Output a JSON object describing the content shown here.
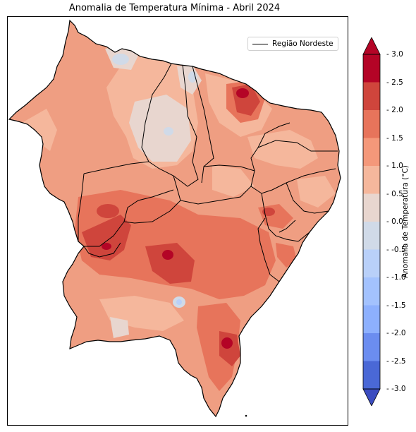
{
  "title": "Anomalia de Temperatura Mínima - Abril 2024",
  "legend": {
    "entry": "Região Nordeste"
  },
  "colorbar": {
    "label": "Anomalia de Temperatura (°C)",
    "ticks": [
      "3.0",
      "2.5",
      "2.0",
      "1.5",
      "1.0",
      "0.5",
      "0.0",
      "-0.5",
      "-1.0",
      "-1.5",
      "-2.0",
      "-2.5",
      "-3.0"
    ],
    "levels": [
      {
        "range": "2.5 to 3.0",
        "color": "#b40426"
      },
      {
        "range": "2.0 to 2.5",
        "color": "#cf453c"
      },
      {
        "range": "1.5 to 2.0",
        "color": "#e7745b"
      },
      {
        "range": "1.0 to 1.5",
        "color": "#f4987a"
      },
      {
        "range": "0.5 to 1.0",
        "color": "#f5b79c"
      },
      {
        "range": "0.0 to 0.5",
        "color": "#e8d6cf"
      },
      {
        "range": "-0.5 to 0.0",
        "color": "#d0dae8"
      },
      {
        "range": "-1.0 to -0.5",
        "color": "#b9d0f9"
      },
      {
        "range": "-1.5 to -1.0",
        "color": "#a3c2fe"
      },
      {
        "range": "-2.0 to -1.5",
        "color": "#8db0fe"
      },
      {
        "range": "-2.5 to -2.0",
        "color": "#6b8df0"
      },
      {
        "range": "-3.0 to -2.5",
        "color": "#4a68d6"
      }
    ],
    "extend_max_color": "#b40426",
    "extend_min_color": "#3b4cc0"
  },
  "colors": {
    "border": "#000000",
    "base_fill": "#ef9e82"
  }
}
